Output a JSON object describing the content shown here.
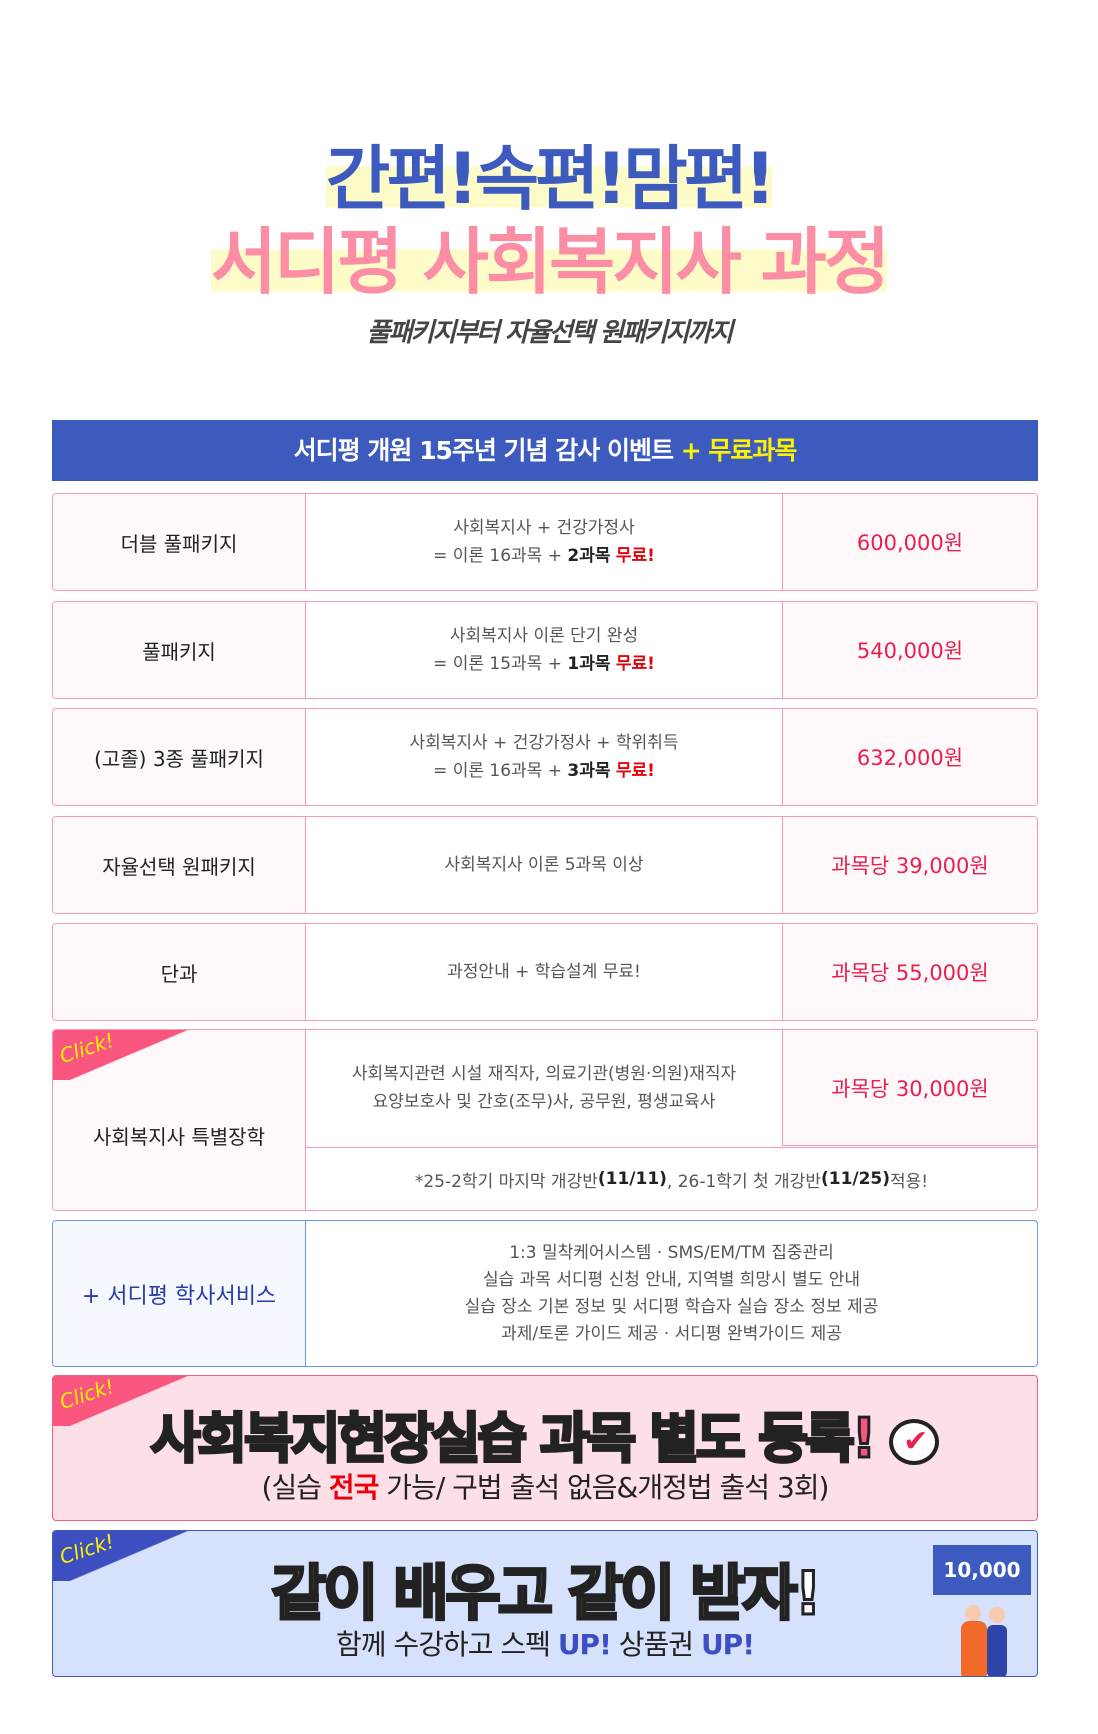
{
  "title": {
    "line1": "간편!속편!맘편!",
    "line2": "서디평 사회복지사 과정",
    "subtitle": "풀패키지부터 자율선택 원패키지까지"
  },
  "event_header": {
    "text": "서디평 개원 15주년 기념 감사 이벤트",
    "highlight": "+ 무료과목"
  },
  "rows": [
    {
      "name": "더블 풀패키지",
      "desc1": "사회복지사 + 건강가정사",
      "desc2_pre": "= 이론 16과목 + ",
      "desc2_bold": "2과목",
      "desc2_free": "무료!",
      "price": "600,000원"
    },
    {
      "name": "풀패키지",
      "desc1": "사회복지사 이론 단기 완성",
      "desc2_pre": "= 이론 15과목 + ",
      "desc2_bold": "1과목",
      "desc2_free": "무료!",
      "price": "540,000원"
    },
    {
      "name": "(고졸) 3종 풀패키지",
      "desc1": "사회복지사 + 건강가정사 + 학위취득",
      "desc2_pre": "= 이론 16과목 + ",
      "desc2_bold": "3과목",
      "desc2_free": "무료!",
      "price": "632,000원"
    },
    {
      "name": "자율선택 원패키지",
      "desc1": "사회복지사 이론 5과목 이상",
      "price": "과목당 39,000원"
    },
    {
      "name": "단과",
      "desc1": "과정안내 + 학습설계 무료!",
      "price": "과목당 55,000원"
    }
  ],
  "scholarship": {
    "badge": "Click!",
    "name": "사회복지사 특별장학",
    "desc1": "사회복지관련 시설 재직자, 의료기관(병원·의원)재직자",
    "desc2": "요양보호사 및 간호(조무)사, 공무원, 평생교육사",
    "price": "과목당 30,000원",
    "note_a": "*25-2학기 마지막 개강반",
    "note_b": "(11/11)",
    "note_c": " , 26-1학기 첫 개강반",
    "note_d": "(11/25)",
    "note_e": " 적용!"
  },
  "service": {
    "name": "+ 서디평 학사서비스",
    "lines": [
      "1:3 밀착케어시스템 · SMS/EM/TM 집중관리",
      "실습 과목 서디평 신청 안내, 지역별 희망시 별도 안내",
      "실습 장소 기본 정보 및 서디평 학습자 실습 장소 정보 제공",
      "과제/토론 가이드 제공 · 서디평 완벽가이드 제공"
    ]
  },
  "banner_practice": {
    "badge": "Click!",
    "title_pink": "사회복지현장실습",
    "title_white1": "과목 별도",
    "title_pink2": "등록!",
    "sub_a": "(실습 ",
    "sub_red": "전국",
    "sub_b": " 가능/ 구법 출석 없음&개정법 출석 3회)"
  },
  "banner_together": {
    "badge": "Click!",
    "w1": "같이",
    "w2": "배우고",
    "w3": "같이",
    "w4": "받자!",
    "sub_a": "함께 수강하고 스펙 ",
    "up1": "UP!",
    "sub_b": " 상품권 ",
    "up2": "UP!",
    "voucher": "10,000"
  },
  "colors": {
    "blue": "#3d5bbf",
    "pink": "#fb8ea5",
    "red": "#e8204e",
    "yellow": "#fff200"
  }
}
